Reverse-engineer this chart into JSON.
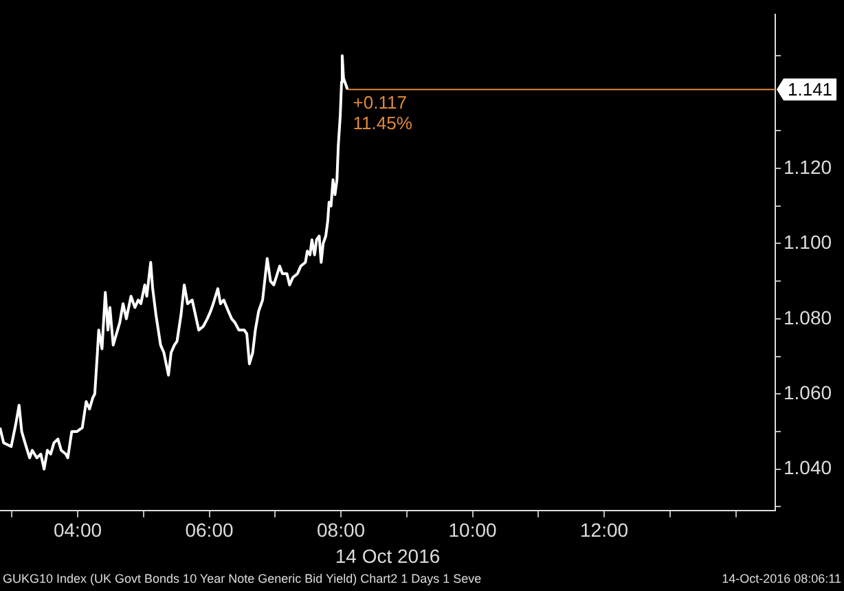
{
  "chart_data": {
    "type": "line",
    "xlabel": "14 Oct 2016",
    "x": [
      2.82,
      2.875,
      2.99,
      3.06,
      3.11,
      3.15,
      3.2,
      3.27,
      3.31,
      3.38,
      3.44,
      3.49,
      3.54,
      3.59,
      3.64,
      3.7,
      3.75,
      3.82,
      3.85,
      3.91,
      3.99,
      4.07,
      4.13,
      4.18,
      4.23,
      4.26,
      4.3,
      4.32,
      4.37,
      4.42,
      4.46,
      4.49,
      4.54,
      4.59,
      4.64,
      4.69,
      4.74,
      4.81,
      4.87,
      4.92,
      4.96,
      5.02,
      5.05,
      5.11,
      5.14,
      5.19,
      5.26,
      5.31,
      5.38,
      5.42,
      5.47,
      5.51,
      5.57,
      5.62,
      5.67,
      5.74,
      5.79,
      5.84,
      5.91,
      5.97,
      6.02,
      6.06,
      6.13,
      6.17,
      6.22,
      6.29,
      6.34,
      6.39,
      6.45,
      6.53,
      6.57,
      6.61,
      6.66,
      6.7,
      6.75,
      6.81,
      6.88,
      6.93,
      6.98,
      7.07,
      7.11,
      7.18,
      7.22,
      7.27,
      7.34,
      7.39,
      7.46,
      7.49,
      7.53,
      7.56,
      7.6,
      7.63,
      7.67,
      7.7,
      7.73,
      7.77,
      7.8,
      7.82,
      7.85,
      7.88,
      7.91,
      7.94,
      7.96,
      7.99,
      8.01,
      8.02,
      8.04,
      8.1
    ],
    "series": [
      {
        "color": "#ffffff",
        "values": [
          1.051,
          1.047,
          1.046,
          1.052,
          1.057,
          1.05,
          1.047,
          1.043,
          1.045,
          1.043,
          1.044,
          1.04,
          1.045,
          1.044,
          1.047,
          1.048,
          1.045,
          1.044,
          1.043,
          1.05,
          1.05,
          1.051,
          1.058,
          1.056,
          1.059,
          1.06,
          1.071,
          1.077,
          1.072,
          1.087,
          1.077,
          1.083,
          1.073,
          1.076,
          1.079,
          1.084,
          1.08,
          1.086,
          1.083,
          1.085,
          1.084,
          1.089,
          1.086,
          1.095,
          1.088,
          1.081,
          1.073,
          1.071,
          1.065,
          1.071,
          1.073,
          1.074,
          1.081,
          1.089,
          1.084,
          1.085,
          1.081,
          1.077,
          1.078,
          1.08,
          1.082,
          1.084,
          1.088,
          1.084,
          1.085,
          1.082,
          1.08,
          1.079,
          1.077,
          1.077,
          1.076,
          1.068,
          1.071,
          1.077,
          1.082,
          1.085,
          1.096,
          1.09,
          1.089,
          1.094,
          1.092,
          1.092,
          1.089,
          1.091,
          1.092,
          1.094,
          1.095,
          1.098,
          1.097,
          1.101,
          1.097,
          1.101,
          1.102,
          1.095,
          1.1,
          1.102,
          1.106,
          1.111,
          1.11,
          1.117,
          1.113,
          1.117,
          1.126,
          1.134,
          1.143,
          1.15,
          1.144,
          1.141
        ]
      }
    ],
    "xlim": [
      2.82,
      14.6
    ],
    "xticks": [
      {
        "value": 3,
        "label": null
      },
      {
        "value": 4,
        "label": "04:00"
      },
      {
        "value": 5,
        "label": null
      },
      {
        "value": 6,
        "label": "06:00"
      },
      {
        "value": 7,
        "label": null
      },
      {
        "value": 8,
        "label": "08:00"
      },
      {
        "value": 9,
        "label": null
      },
      {
        "value": 10,
        "label": "10:00"
      },
      {
        "value": 11,
        "label": null
      },
      {
        "value": 12,
        "label": "12:00"
      },
      {
        "value": 13,
        "label": null
      },
      {
        "value": 14,
        "label": null
      }
    ],
    "ylim": [
      1.029,
      1.161
    ],
    "yticks": [
      {
        "value": 1.03,
        "label": null
      },
      {
        "value": 1.04,
        "label": "1.040"
      },
      {
        "value": 1.05,
        "label": null
      },
      {
        "value": 1.06,
        "label": "1.060"
      },
      {
        "value": 1.07,
        "label": null
      },
      {
        "value": 1.08,
        "label": "1.080"
      },
      {
        "value": 1.09,
        "label": null
      },
      {
        "value": 1.1,
        "label": "1.100"
      },
      {
        "value": 1.11,
        "label": null
      },
      {
        "value": 1.12,
        "label": "1.120"
      },
      {
        "value": 1.13,
        "label": null
      },
      {
        "value": 1.15,
        "label": null
      }
    ],
    "ref_lines": [
      {
        "axis": "y",
        "value": 1.141,
        "label": "1.141",
        "color": "#e0883a"
      }
    ],
    "annotations": [
      {
        "text": "+0.117",
        "x": 8.1,
        "y": 1.141
      },
      {
        "text": "11.45%",
        "x": 8.1,
        "y": 1.141
      },
      "GUKG10 Index (UK Govt Bonds 10 Year Note Generic Bid Yield) Chart2 1 Days 1 Seve",
      "14-Oct-2016 08:06:11"
    ],
    "grid": false,
    "legend": false,
    "marker": "none",
    "line_style": "solid"
  }
}
